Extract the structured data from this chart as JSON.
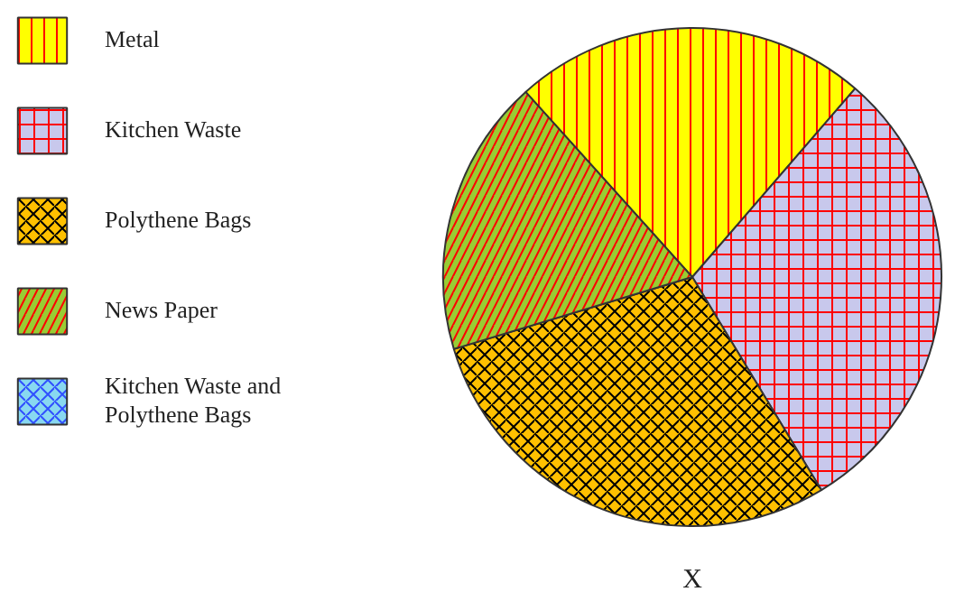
{
  "chart_data": {
    "type": "pie",
    "title": "X",
    "categories": [
      "Metal",
      "Kitchen Waste",
      "Polythene Bags",
      "News Paper",
      "Kitchen Waste and Polythene Bags"
    ],
    "values": [
      23,
      30,
      29,
      18,
      0
    ],
    "colors": [
      "#ffff00",
      "#c8c8ec",
      "#ffc000",
      "#99cc33",
      "#88d8f0"
    ],
    "legend": "left"
  }
}
